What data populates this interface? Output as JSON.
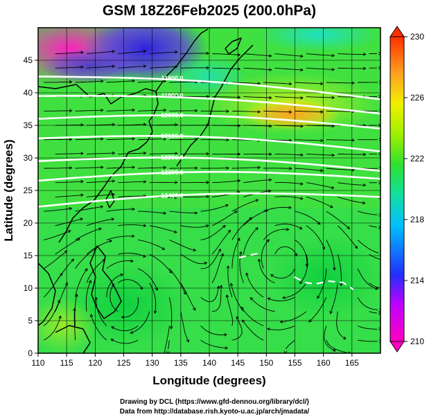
{
  "title": "GSM 18Z26Feb2025 (200.0hPa)",
  "xlabel": "Longitude (degrees)",
  "ylabel": "Latitude (degrees)",
  "credits": [
    "Drawing by DCL (https://www.gfd-dennou.org/library/dcl/)",
    "Data from http://database.rish.kyoto-u.ac.jp/arch/jmadata/"
  ],
  "chart_data": {
    "type": "heatmap",
    "xlim": [
      110,
      170
    ],
    "ylim": [
      0,
      50
    ],
    "x_ticks": [
      110,
      115,
      120,
      125,
      130,
      135,
      140,
      145,
      150,
      155,
      160,
      165
    ],
    "y_ticks": [
      0,
      5,
      10,
      15,
      20,
      25,
      30,
      35,
      40,
      45
    ],
    "grid": true,
    "colorbar": {
      "min": 210,
      "max": 230,
      "ticks": [
        210,
        214,
        218,
        222,
        226,
        230
      ],
      "colors": [
        "#ff00c0",
        "#c000ff",
        "#2030ff",
        "#00c0ff",
        "#10e0a0",
        "#30e030",
        "#a0f000",
        "#f0f000",
        "#ffa020",
        "#ff3000"
      ]
    },
    "contours": [
      {
        "value": "11800.0",
        "lat_west": 42.5,
        "lat_east": 39.0
      },
      {
        "value": "11900.0",
        "lat_west": 39.5,
        "lat_east": 36.8
      },
      {
        "value": "12000.0",
        "lat_west": 36.0,
        "lat_east": 34.5
      },
      {
        "value": "12100.0",
        "lat_west": 33.0,
        "lat_east": 31.0
      },
      {
        "value": "12200.0",
        "lat_west": 29.5,
        "lat_east": 28.0
      },
      {
        "value": "12300.0",
        "lat_west": 26.5,
        "lat_east": 26.8
      },
      {
        "value": "12400.0",
        "lat_west": 22.5,
        "lat_east": 24.0
      }
    ]
  }
}
